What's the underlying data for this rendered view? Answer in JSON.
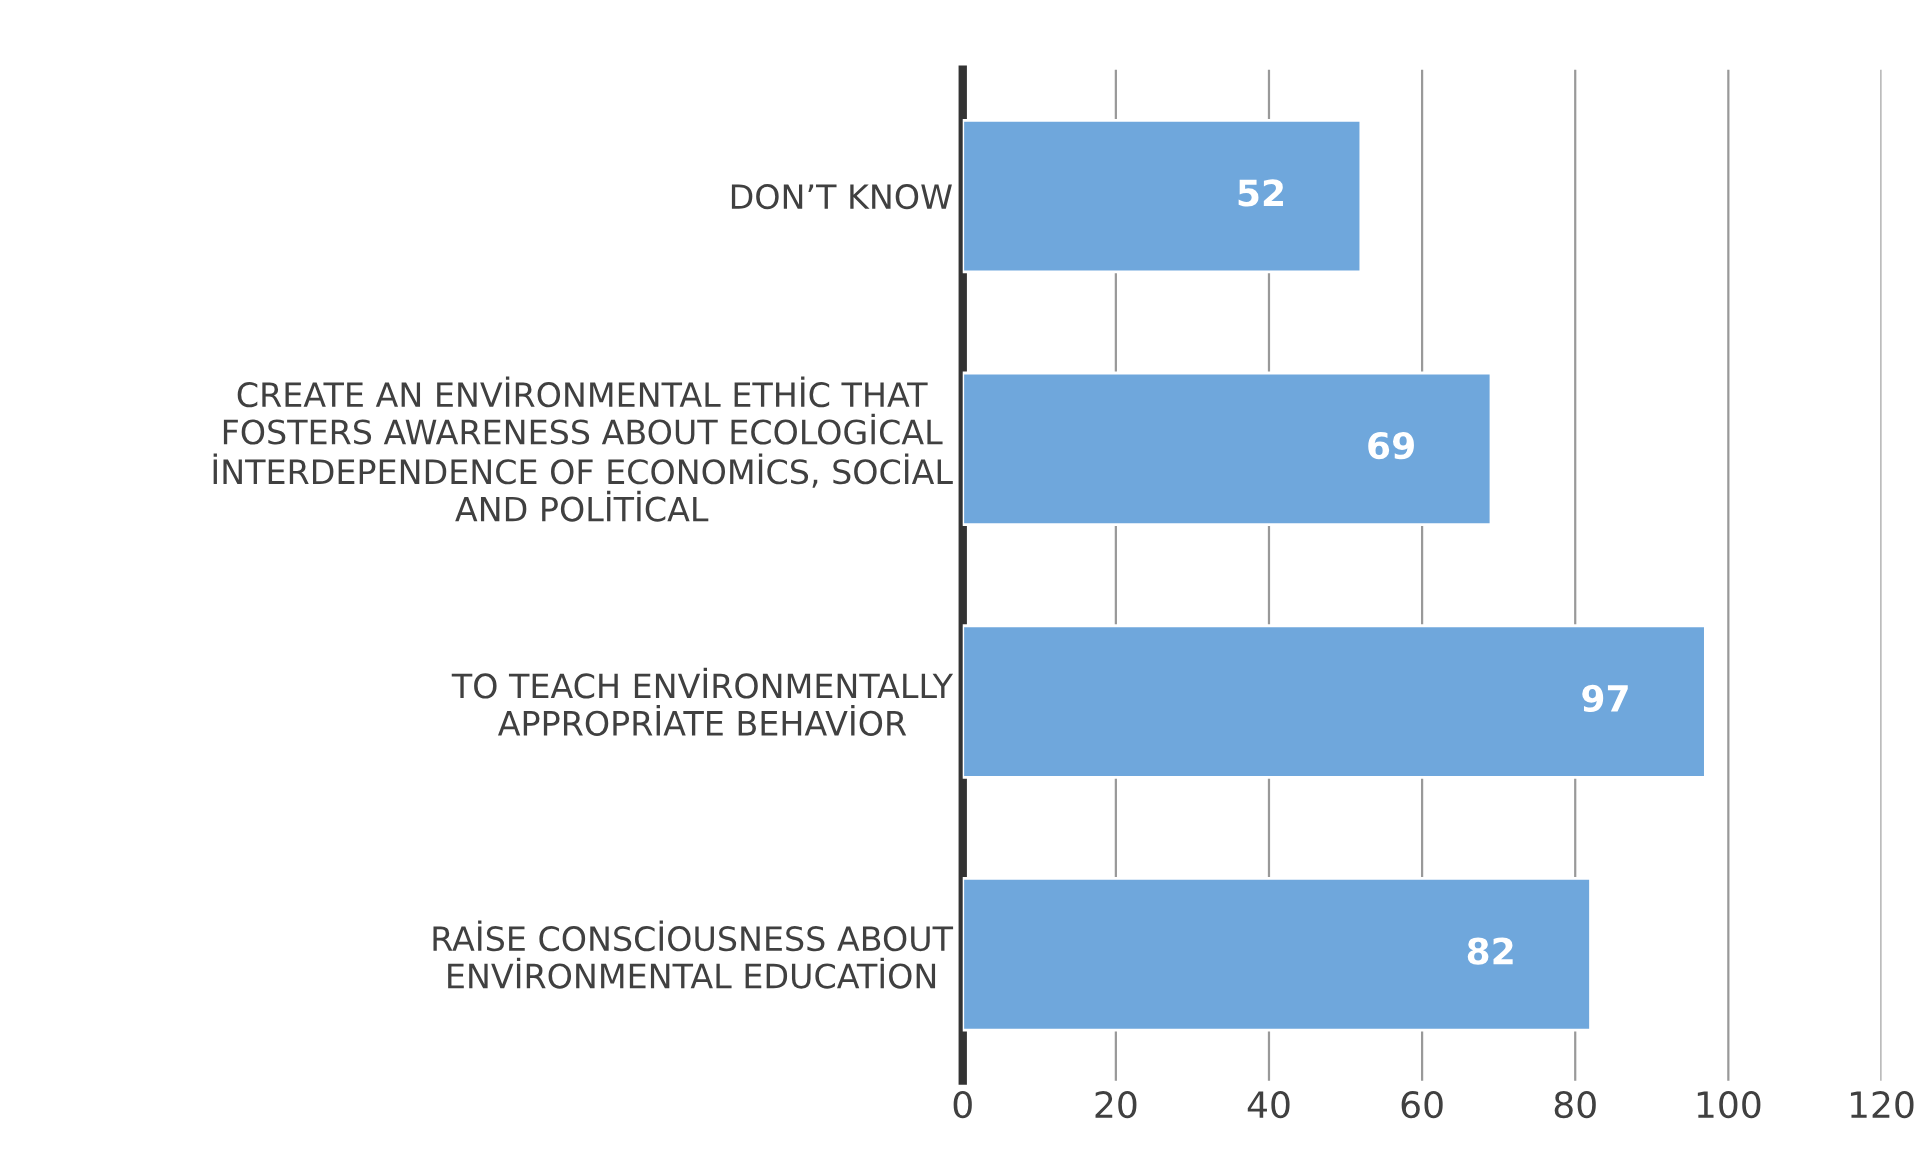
{
  "chart_data": {
    "type": "bar",
    "orientation": "horizontal",
    "categories": [
      "DON’T KNOW",
      "CREATE AN ENVİRONMENTAL ETHİC THAT\nFOSTERS AWARENESS ABOUT ECOLOGİCAL\nİNTERDEPENDENCE OF ECONOMİCS, SOCİAL\nAND POLİTİCAL",
      "TO TEACH ENVİRONMENTALLY\nAPPROPRİATE BEHAVİOR",
      "RAİSE CONSCİOUSNESS ABOUT\nENVİRONMENTAL EDUCATİON"
    ],
    "values": [
      52,
      69,
      97,
      82
    ],
    "color": "#6fa7dc",
    "xlim": [
      0,
      120
    ],
    "xticks": [
      0,
      20,
      40,
      60,
      80,
      100,
      120
    ],
    "grid": "x",
    "data_labels": true
  }
}
